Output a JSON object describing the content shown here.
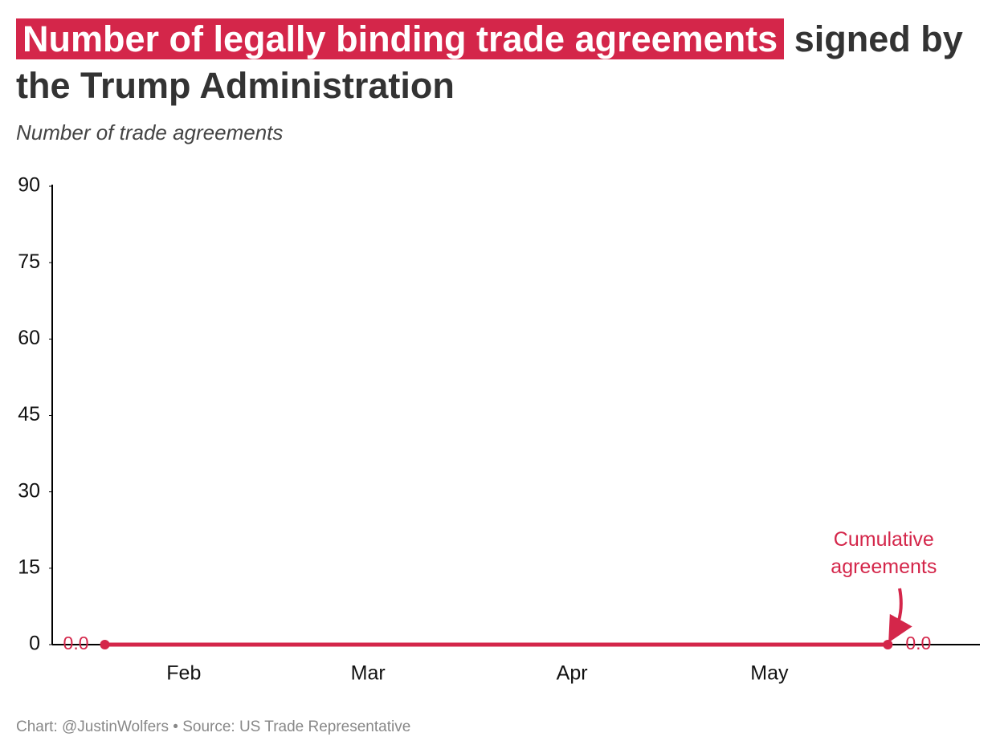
{
  "chart_data": {
    "type": "line",
    "title_highlight": "Number of legally binding trade agreements",
    "title_rest": "signed by the Trump Administration",
    "subtitle": "Number of trade agreements",
    "footer": "Chart: @JustinWolfers • Source: US Trade Representative",
    "x": [
      20,
      139
    ],
    "xlim": [
      12,
      153
    ],
    "xticks": [
      {
        "value": 32,
        "label": "Feb"
      },
      {
        "value": 60,
        "label": "Mar"
      },
      {
        "value": 91,
        "label": "Apr"
      },
      {
        "value": 121,
        "label": "May"
      }
    ],
    "ylim": [
      0,
      90
    ],
    "yticks": [
      0,
      15,
      30,
      45,
      60,
      75,
      90
    ],
    "grid": false,
    "series": [
      {
        "name": "Cumulative agreements",
        "color": "#d4264a",
        "values": [
          0,
          0
        ],
        "value_labels": [
          "0.0",
          "0.0"
        ]
      }
    ]
  }
}
